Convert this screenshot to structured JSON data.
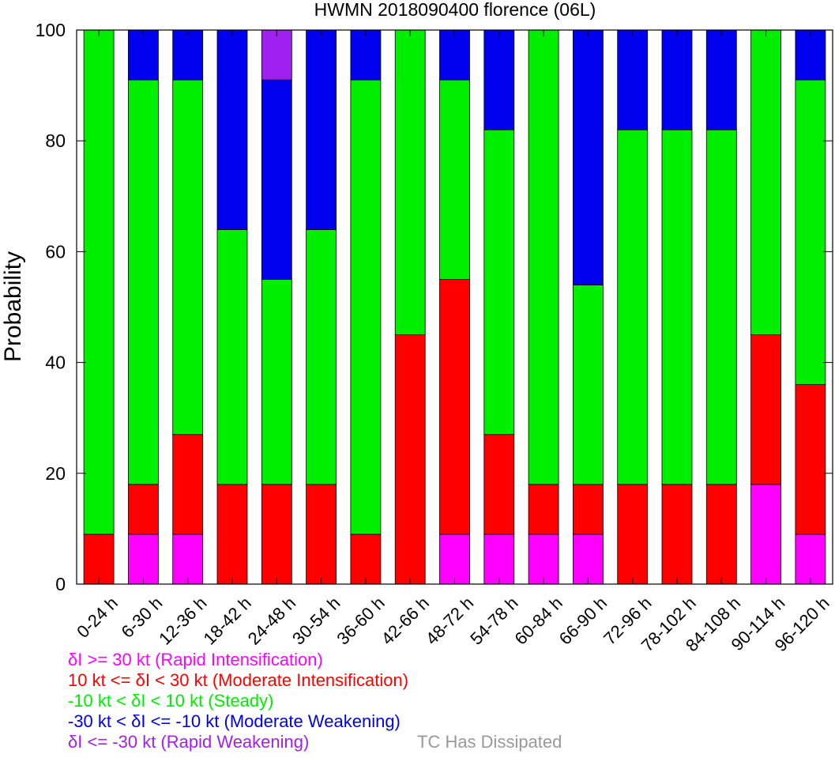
{
  "chart_data": {
    "type": "bar",
    "stacked": true,
    "title": "HWMN 2018090400 florence (06L)",
    "xlabel": "",
    "ylabel": "Probability",
    "ylim": [
      0,
      100
    ],
    "yticks": [
      0,
      20,
      40,
      60,
      80,
      100
    ],
    "grid": false,
    "categories": [
      "0-24 h",
      "6-30 h",
      "12-36 h",
      "18-42 h",
      "24-48 h",
      "30-54 h",
      "36-60 h",
      "42-66 h",
      "48-72 h",
      "54-78 h",
      "60-84 h",
      "66-90 h",
      "72-96 h",
      "78-102 h",
      "84-108 h",
      "90-114 h",
      "96-120 h"
    ],
    "series": [
      {
        "name": "δI >= 30 kt (Rapid Intensification)",
        "color": "#ff00ff",
        "values": [
          0,
          9,
          9,
          0,
          0,
          0,
          0,
          0,
          9,
          9,
          9,
          9,
          0,
          0,
          0,
          18,
          9
        ]
      },
      {
        "name": "10 kt <= δI < 30 kt (Moderate Intensification)",
        "color": "#ff0000",
        "values": [
          9,
          9,
          18,
          18,
          18,
          18,
          9,
          45,
          46,
          18,
          9,
          9,
          18,
          18,
          18,
          27,
          27
        ]
      },
      {
        "name": "-10 kt < δI < 10 kt (Steady)",
        "color": "#00ee00",
        "values": [
          91,
          73,
          64,
          46,
          37,
          46,
          82,
          55,
          36,
          55,
          82,
          36,
          64,
          64,
          64,
          55,
          55
        ]
      },
      {
        "name": "-30 kt < δI <= -10 kt (Moderate Weakening)",
        "color": "#0000ee",
        "values": [
          0,
          9,
          9,
          36,
          36,
          36,
          9,
          0,
          9,
          18,
          0,
          46,
          18,
          18,
          18,
          0,
          9
        ]
      },
      {
        "name": "δI <= -30 kt (Rapid Weakening)",
        "color": "#a020f0",
        "values": [
          0,
          0,
          0,
          0,
          9,
          0,
          0,
          0,
          0,
          0,
          0,
          0,
          0,
          0,
          0,
          0,
          0
        ]
      }
    ],
    "extra_legend": {
      "name": "TC Has Dissipated",
      "color": "#999999"
    },
    "legend_placement": "bottom-left"
  }
}
